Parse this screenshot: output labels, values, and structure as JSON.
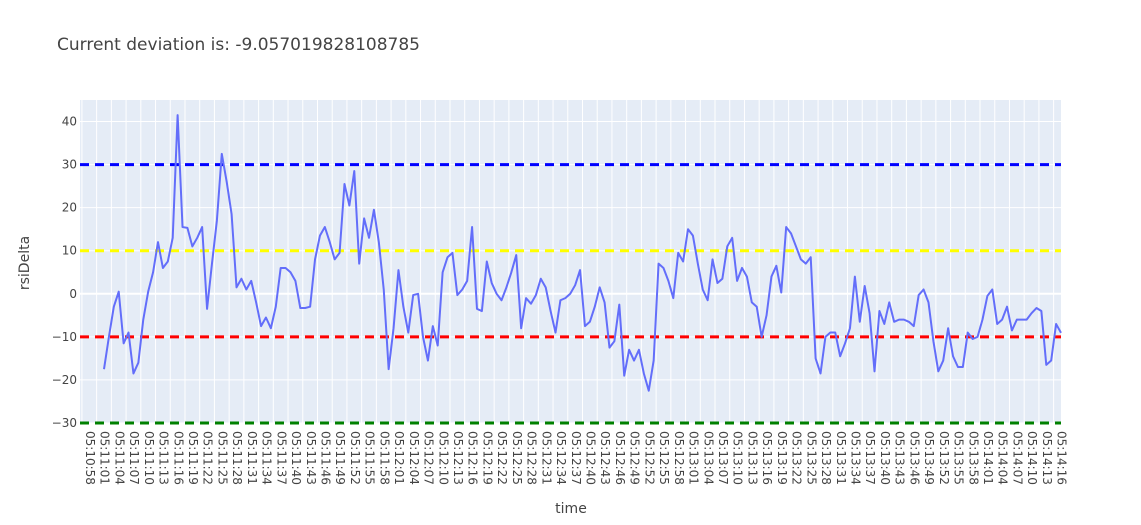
{
  "chart_data": {
    "type": "line",
    "title": "Current deviation is: -9.057019828108785",
    "xlabel": "time",
    "ylabel": "rsiDelta",
    "ylim": [
      -30,
      45
    ],
    "yticks": [
      -30,
      -20,
      -10,
      0,
      10,
      20,
      30,
      40
    ],
    "xtick_labels": [
      "05:10:58",
      "05:11:01",
      "05:11:04",
      "05:11:07",
      "05:11:10",
      "05:11:13",
      "05:11:16",
      "05:11:19",
      "05:11:22",
      "05:11:25",
      "05:11:28",
      "05:11:31",
      "05:11:34",
      "05:11:37",
      "05:11:40",
      "05:11:43",
      "05:11:46",
      "05:11:49",
      "05:11:52",
      "05:11:55",
      "05:11:58",
      "05:12:01",
      "05:12:04",
      "05:12:07",
      "05:12:10",
      "05:12:13",
      "05:12:16",
      "05:12:19",
      "05:12:22",
      "05:12:25",
      "05:12:28",
      "05:12:31",
      "05:12:34",
      "05:12:37",
      "05:12:40",
      "05:12:43",
      "05:12:46",
      "05:12:49",
      "05:12:52",
      "05:12:55",
      "05:12:58",
      "05:13:01",
      "05:13:04",
      "05:13:07",
      "05:13:10",
      "05:13:13",
      "05:13:16",
      "05:13:19",
      "05:13:22",
      "05:13:25",
      "05:13:28",
      "05:13:31",
      "05:13:34",
      "05:13:37",
      "05:13:40",
      "05:13:43",
      "05:13:46",
      "05:13:49",
      "05:13:52",
      "05:13:55",
      "05:13:58",
      "05:14:01",
      "05:14:04",
      "05:14:07",
      "05:14:10",
      "05:14:13",
      "05:14:16"
    ],
    "grid": true,
    "background": "#E5ECF6",
    "series": [
      {
        "color": "#636EFA",
        "values": [
          -17.5,
          -10,
          -3,
          0.5,
          -11.5,
          -9,
          -18.5,
          -16,
          -6,
          0.5,
          5,
          12,
          6,
          7.5,
          13,
          41.5,
          15.5,
          15.3,
          11,
          13,
          15.5,
          -3.5,
          7,
          17,
          32.5,
          26,
          18.5,
          1.5,
          3.5,
          1,
          3,
          -2,
          -7.5,
          -5.5,
          -8,
          -3,
          6,
          6,
          5,
          3,
          -3.3,
          -3.3,
          -3,
          8,
          13.5,
          15.5,
          12,
          8,
          9.5,
          25.5,
          20.5,
          28.5,
          7,
          17.5,
          13,
          19.5,
          12,
          1,
          -17.5,
          -8,
          5.5,
          -3,
          -9,
          -0.3,
          0,
          -10,
          -15.5,
          -7.5,
          -12,
          5,
          8.5,
          9.5,
          -0.3,
          1,
          3,
          15.5,
          -3.5,
          -4,
          7.5,
          2.5,
          0,
          -1.5,
          1.5,
          5,
          9,
          -8,
          -1,
          -2.3,
          -0.3,
          3.5,
          1.5,
          -4,
          -9,
          -1.5,
          -1,
          0,
          2,
          5.5,
          -7.5,
          -6.5,
          -3,
          1.5,
          -2,
          -12.5,
          -11,
          -2.5,
          -19,
          -13,
          -15.5,
          -13,
          -18.5,
          -22.5,
          -15.5,
          7,
          6,
          3,
          -1,
          9.5,
          7.5,
          15,
          13.5,
          7,
          1,
          -1.5,
          8,
          2.5,
          3.5,
          11,
          13,
          3,
          6,
          4,
          -2,
          -3,
          -10,
          -5,
          4,
          6.5,
          0.3,
          15.5,
          14,
          11,
          8,
          7,
          8.5,
          -15,
          -18.5,
          -10,
          -9,
          -9,
          -14.5,
          -11.5,
          -8,
          4,
          -6.5,
          1.8,
          -4.5,
          -18,
          -4,
          -7,
          -2,
          -6.5,
          -6,
          -6,
          -6.5,
          -7.5,
          -0.3,
          1,
          -2,
          -11,
          -18,
          -15.5,
          -8,
          -14.5,
          -17,
          -17,
          -9,
          -10.5,
          -10,
          -6,
          -0.5,
          1,
          -7,
          -6,
          -3,
          -8.5,
          -6,
          -6,
          -6,
          -4.5,
          -3.3,
          -4,
          -16.5,
          -15.5,
          -7,
          -9.06
        ]
      }
    ],
    "reference_lines": [
      {
        "value": 30,
        "color": "#0000FF",
        "style": "dashed"
      },
      {
        "value": 10,
        "color": "#FFFF00",
        "style": "dashed"
      },
      {
        "value": -10,
        "color": "#FF0000",
        "style": "dashed"
      },
      {
        "value": -30,
        "color": "#008000",
        "style": "dashed"
      }
    ]
  }
}
